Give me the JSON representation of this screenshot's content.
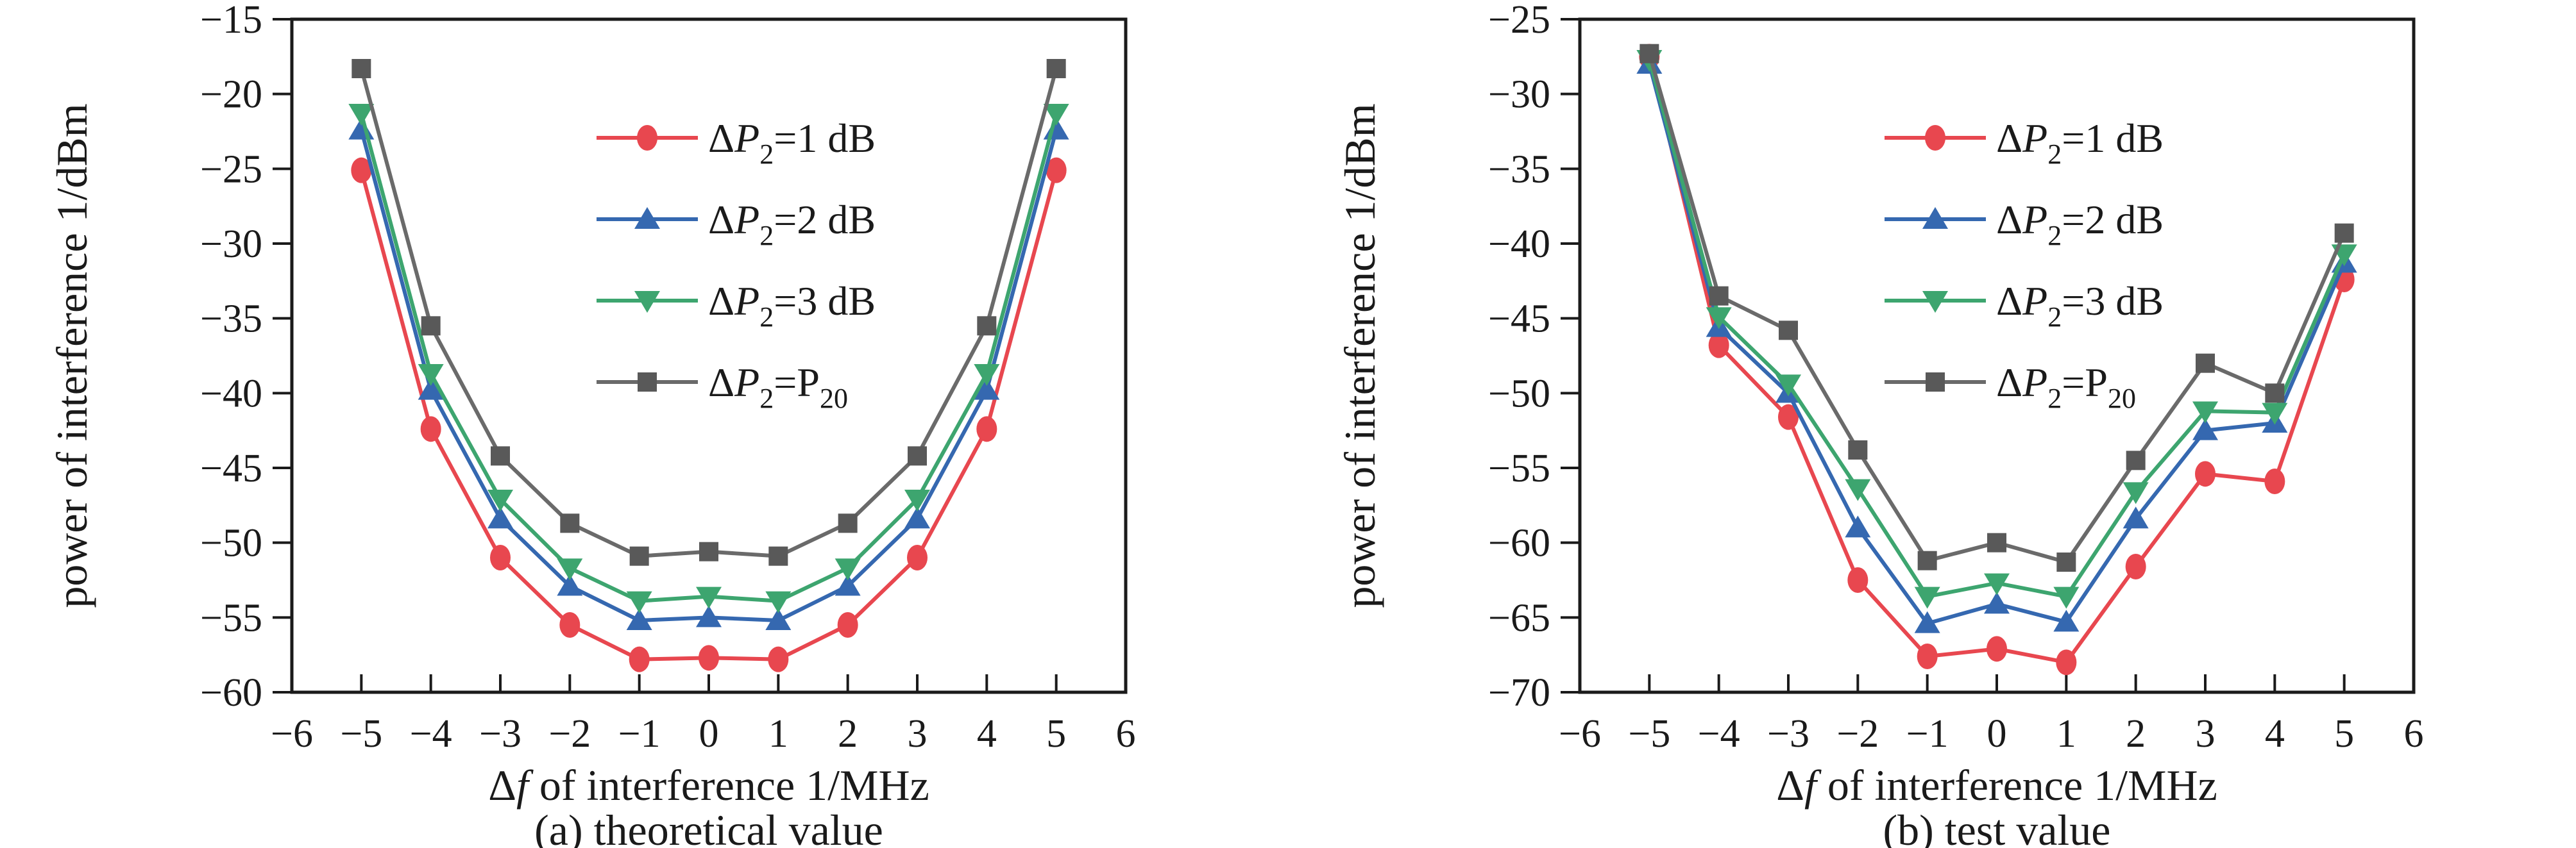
{
  "figure": {
    "background": "#ffffff",
    "axis_color": "#1a1a1a",
    "description": "two line charts comparing interference power vs frequency offset"
  },
  "chart_data": [
    {
      "type": "line",
      "caption": "(a) theoretical value",
      "xlabel": "Δf of interference 1/MHz",
      "xlabel_parts": [
        {
          "t": "Δ"
        },
        {
          "t": "f",
          "i": true
        },
        {
          "t": " of interference 1/MHz"
        }
      ],
      "ylabel": "power of interference 1/dBm",
      "xlim": [
        -6,
        6
      ],
      "ylim": [
        -60,
        -15
      ],
      "xticks": [
        -6,
        -5,
        -4,
        -3,
        -2,
        -1,
        0,
        1,
        2,
        3,
        4,
        5,
        6
      ],
      "yticks": [
        -60,
        -55,
        -50,
        -45,
        -40,
        -35,
        -30,
        -25,
        -20,
        -15
      ],
      "grid": false,
      "legend_position": "inside-upper-center",
      "x": [
        -5,
        -4,
        -3,
        -2,
        -1,
        0,
        1,
        2,
        3,
        4,
        5
      ],
      "series": [
        {
          "name": "ΔP₂=1 dB",
          "label_parts": [
            {
              "t": "Δ"
            },
            {
              "t": "P",
              "i": true
            },
            {
              "t": "2",
              "s": true
            },
            {
              "t": "=1 dB"
            }
          ],
          "color": "#e8474f",
          "marker": "circle",
          "values": [
            -25.1,
            -42.4,
            -51.0,
            -55.5,
            -57.8,
            -57.7,
            -57.8,
            -55.5,
            -51.0,
            -42.4,
            -25.1
          ]
        },
        {
          "name": "ΔP₂=2 dB",
          "label_parts": [
            {
              "t": "Δ"
            },
            {
              "t": "P",
              "i": true
            },
            {
              "t": "2",
              "s": true
            },
            {
              "t": "=2 dB"
            }
          ],
          "color": "#3568b0",
          "marker": "triangle-up",
          "values": [
            -22.4,
            -39.8,
            -48.4,
            -52.9,
            -55.2,
            -55.0,
            -55.2,
            -52.9,
            -48.4,
            -39.8,
            -22.4
          ]
        },
        {
          "name": "ΔP₂=3 dB",
          "label_parts": [
            {
              "t": "Δ"
            },
            {
              "t": "P",
              "i": true
            },
            {
              "t": "2",
              "s": true
            },
            {
              "t": "=3 dB"
            }
          ],
          "color": "#3da56f",
          "marker": "triangle-down",
          "values": [
            -21.3,
            -38.7,
            -47.1,
            -51.7,
            -53.9,
            -53.6,
            -53.9,
            -51.7,
            -47.1,
            -38.7,
            -21.3
          ]
        },
        {
          "name": "ΔP₂=P₂₀",
          "label_parts": [
            {
              "t": "Δ"
            },
            {
              "t": "P",
              "i": true
            },
            {
              "t": "2",
              "s": true
            },
            {
              "t": "=P"
            },
            {
              "t": "20",
              "s": true
            }
          ],
          "color": "#595959",
          "line_color": "#6a6a6a",
          "marker": "square",
          "values": [
            -18.3,
            -35.5,
            -44.2,
            -48.7,
            -50.9,
            -50.6,
            -50.9,
            -48.7,
            -44.2,
            -35.5,
            -18.3
          ]
        }
      ]
    },
    {
      "type": "line",
      "caption": "(b) test value",
      "xlabel": "Δf of interference 1/MHz",
      "xlabel_parts": [
        {
          "t": "Δ"
        },
        {
          "t": "f",
          "i": true
        },
        {
          "t": " of interference 1/MHz"
        }
      ],
      "ylabel": "power of interference 1/dBm",
      "xlim": [
        -6,
        6
      ],
      "ylim": [
        -70,
        -25
      ],
      "xticks": [
        -6,
        -5,
        -4,
        -3,
        -2,
        -1,
        0,
        1,
        2,
        3,
        4,
        5,
        6
      ],
      "yticks": [
        -70,
        -65,
        -60,
        -55,
        -50,
        -45,
        -40,
        -35,
        -30,
        -25
      ],
      "grid": false,
      "legend_position": "inside-upper-center",
      "x": [
        -5,
        -4,
        -3,
        -2,
        -1,
        0,
        1,
        2,
        3,
        4,
        5
      ],
      "series": [
        {
          "name": "ΔP₂=1 dB",
          "label_parts": [
            {
              "t": "Δ"
            },
            {
              "t": "P",
              "i": true
            },
            {
              "t": "2",
              "s": true
            },
            {
              "t": "=1 dB"
            }
          ],
          "color": "#e8474f",
          "marker": "circle",
          "values": [
            -27.5,
            -46.8,
            -51.6,
            -62.5,
            -67.6,
            -67.1,
            -68.0,
            -61.6,
            -55.4,
            -55.9,
            -42.4
          ]
        },
        {
          "name": "ΔP₂=2 dB",
          "label_parts": [
            {
              "t": "Δ"
            },
            {
              "t": "P",
              "i": true
            },
            {
              "t": "2",
              "s": true
            },
            {
              "t": "=2 dB"
            }
          ],
          "color": "#3568b0",
          "marker": "triangle-up",
          "values": [
            -28.0,
            -45.6,
            -50.0,
            -59.0,
            -65.4,
            -64.1,
            -65.3,
            -58.4,
            -52.5,
            -52.0,
            -41.3
          ]
        },
        {
          "name": "ΔP₂=3 dB",
          "label_parts": [
            {
              "t": "Δ"
            },
            {
              "t": "P",
              "i": true
            },
            {
              "t": "2",
              "s": true
            },
            {
              "t": "=3 dB"
            }
          ],
          "color": "#3da56f",
          "marker": "triangle-down",
          "values": [
            -27.7,
            -44.9,
            -49.4,
            -56.4,
            -63.6,
            -62.7,
            -63.6,
            -56.6,
            -51.2,
            -51.3,
            -40.7
          ]
        },
        {
          "name": "ΔP₂=P₂₀",
          "label_parts": [
            {
              "t": "Δ"
            },
            {
              "t": "P",
              "i": true
            },
            {
              "t": "2",
              "s": true
            },
            {
              "t": "=P"
            },
            {
              "t": "20",
              "s": true
            }
          ],
          "color": "#595959",
          "line_color": "#6a6a6a",
          "marker": "square",
          "values": [
            -27.3,
            -43.5,
            -45.8,
            -53.8,
            -61.2,
            -60.0,
            -61.3,
            -54.5,
            -48.0,
            -50.0,
            -39.3
          ]
        }
      ]
    }
  ]
}
